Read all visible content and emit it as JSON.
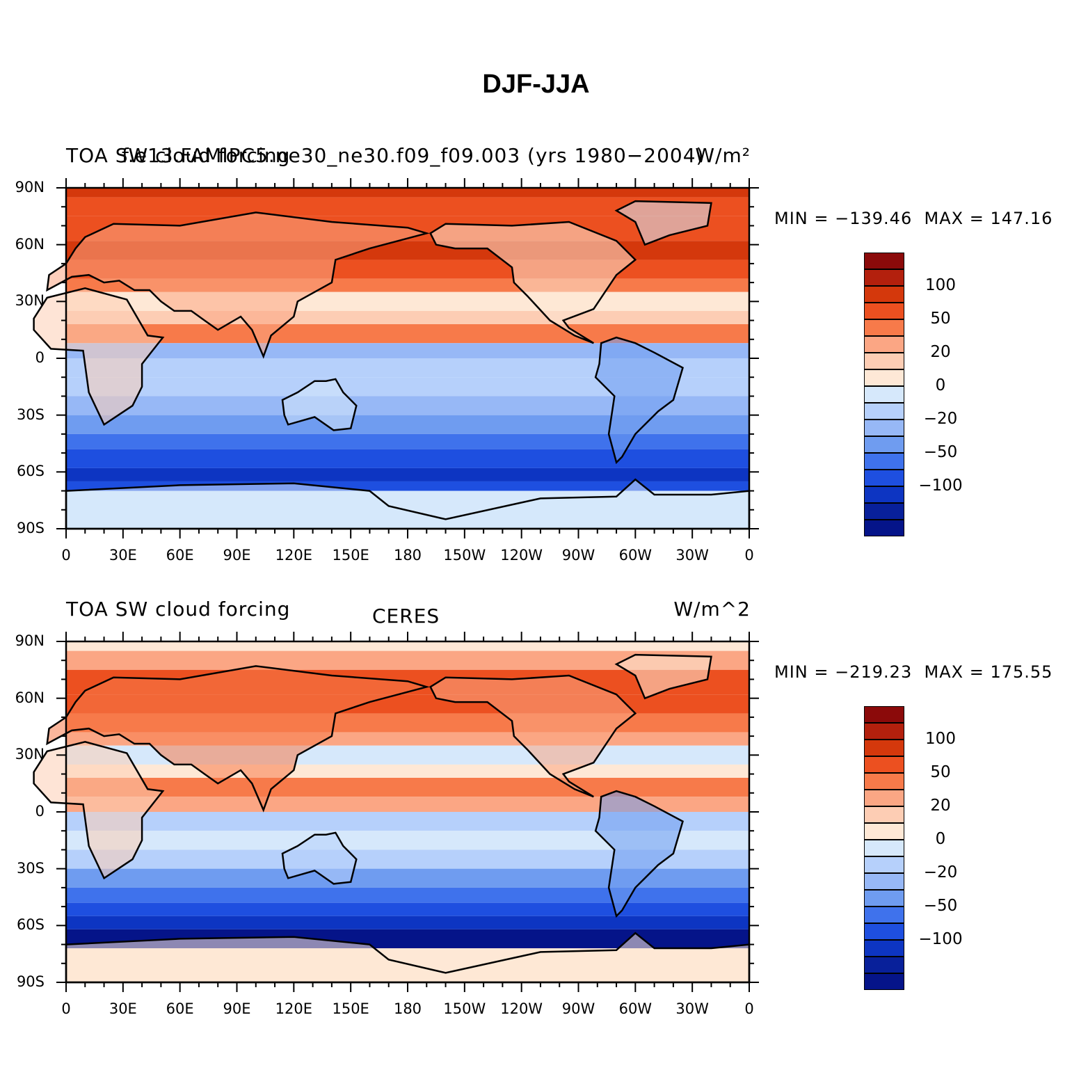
{
  "title": "DJF-JJA",
  "colorbar": {
    "colors": [
      "#8b0a0a",
      "#b3200d",
      "#d4380c",
      "#ec5020",
      "#f77a4a",
      "#fba684",
      "#fdcdb4",
      "#fee8d6",
      "#d6e8fb",
      "#b6d0fb",
      "#97b8f6",
      "#6f9cf0",
      "#3f72ec",
      "#1e4fe0",
      "#0d35c2",
      "#08209a",
      "#051489"
    ],
    "labels": [
      "100",
      "50",
      "20",
      "0",
      "−20",
      "−50",
      "−100"
    ]
  },
  "panels": [
    {
      "id": "model",
      "left_text": "TOA SW cloud forcing",
      "left_text_overlap": "f.e13.FAMIPC5.ne30_ne30.f09_f09.003 (yrs 1980−2004)",
      "center_text": "",
      "right_text": "W/m²",
      "min_label": "MIN",
      "min_value": "−139.46",
      "max_label": "MAX",
      "max_value": "147.16"
    },
    {
      "id": "obs",
      "left_text": "TOA SW cloud forcing",
      "left_text_overlap": "",
      "center_text": "CERES",
      "right_text": "W/m^2",
      "min_label": "MIN",
      "min_value": "−219.23",
      "max_label": "MAX",
      "max_value": "175.55"
    }
  ],
  "lat_labels": [
    "90N",
    "60N",
    "30N",
    "0",
    "30S",
    "60S",
    "90S"
  ],
  "lon_labels": [
    "0",
    "30E",
    "60E",
    "90E",
    "120E",
    "150E",
    "180",
    "150W",
    "120W",
    "90W",
    "60W",
    "30W",
    "0"
  ]
}
